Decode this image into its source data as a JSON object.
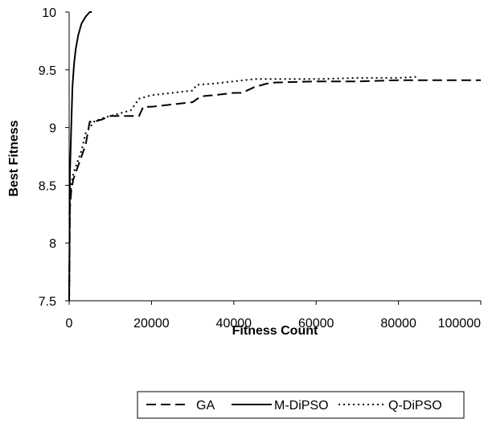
{
  "chart_data": {
    "type": "line",
    "title": "",
    "xlabel": "Fitness Count",
    "ylabel": "Best Fitness",
    "xlim": [
      0,
      100000
    ],
    "ylim": [
      7.5,
      10
    ],
    "xticks": [
      0,
      20000,
      40000,
      60000,
      80000,
      100000
    ],
    "yticks": [
      7.5,
      8,
      8.5,
      9,
      9.5,
      10
    ],
    "xtick_labels": [
      "0",
      "20000",
      "40000",
      "60000",
      "80000",
      "100000"
    ],
    "ytick_labels": [
      "7.5",
      "8",
      "8.5",
      "9",
      "9.5",
      "10"
    ],
    "grid": false,
    "legend_position": "bottom",
    "series": [
      {
        "name": "GA",
        "dash": "dashed",
        "color": "#000000",
        "x": [
          0,
          200,
          500,
          1000,
          2000,
          3000,
          4000,
          5000,
          6000,
          8000,
          10000,
          12000,
          15000,
          17000,
          18000,
          20000,
          25000,
          30000,
          32000,
          35000,
          40000,
          42000,
          45000,
          48000,
          50000,
          60000,
          70000,
          80000,
          90000,
          100000
        ],
        "y": [
          7.5,
          8.3,
          8.45,
          8.55,
          8.65,
          8.75,
          8.85,
          9.05,
          9.05,
          9.07,
          9.1,
          9.1,
          9.1,
          9.1,
          9.18,
          9.18,
          9.2,
          9.22,
          9.27,
          9.28,
          9.3,
          9.3,
          9.35,
          9.38,
          9.39,
          9.4,
          9.4,
          9.41,
          9.41,
          9.41
        ]
      },
      {
        "name": "M-DiPSO",
        "dash": "solid",
        "color": "#000000",
        "x": [
          0,
          200,
          500,
          800,
          1200,
          1600,
          2200,
          3000,
          4000,
          5000,
          5500
        ],
        "y": [
          7.5,
          8.6,
          9.0,
          9.35,
          9.55,
          9.68,
          9.8,
          9.9,
          9.96,
          10.0,
          10.0
        ]
      },
      {
        "name": "Q-DiPSO",
        "dash": "dotted",
        "color": "#000000",
        "x": [
          0,
          200,
          500,
          1000,
          2000,
          3000,
          4000,
          5000,
          6000,
          8000,
          10000,
          12000,
          15000,
          17000,
          20000,
          25000,
          30000,
          31000,
          35000,
          40000,
          45000,
          50000,
          60000,
          70000,
          80000,
          85000
        ],
        "y": [
          7.5,
          8.35,
          8.5,
          8.6,
          8.7,
          8.8,
          8.95,
          9.0,
          9.05,
          9.08,
          9.1,
          9.12,
          9.15,
          9.25,
          9.28,
          9.3,
          9.32,
          9.37,
          9.38,
          9.4,
          9.42,
          9.42,
          9.42,
          9.43,
          9.43,
          9.44
        ]
      }
    ]
  }
}
